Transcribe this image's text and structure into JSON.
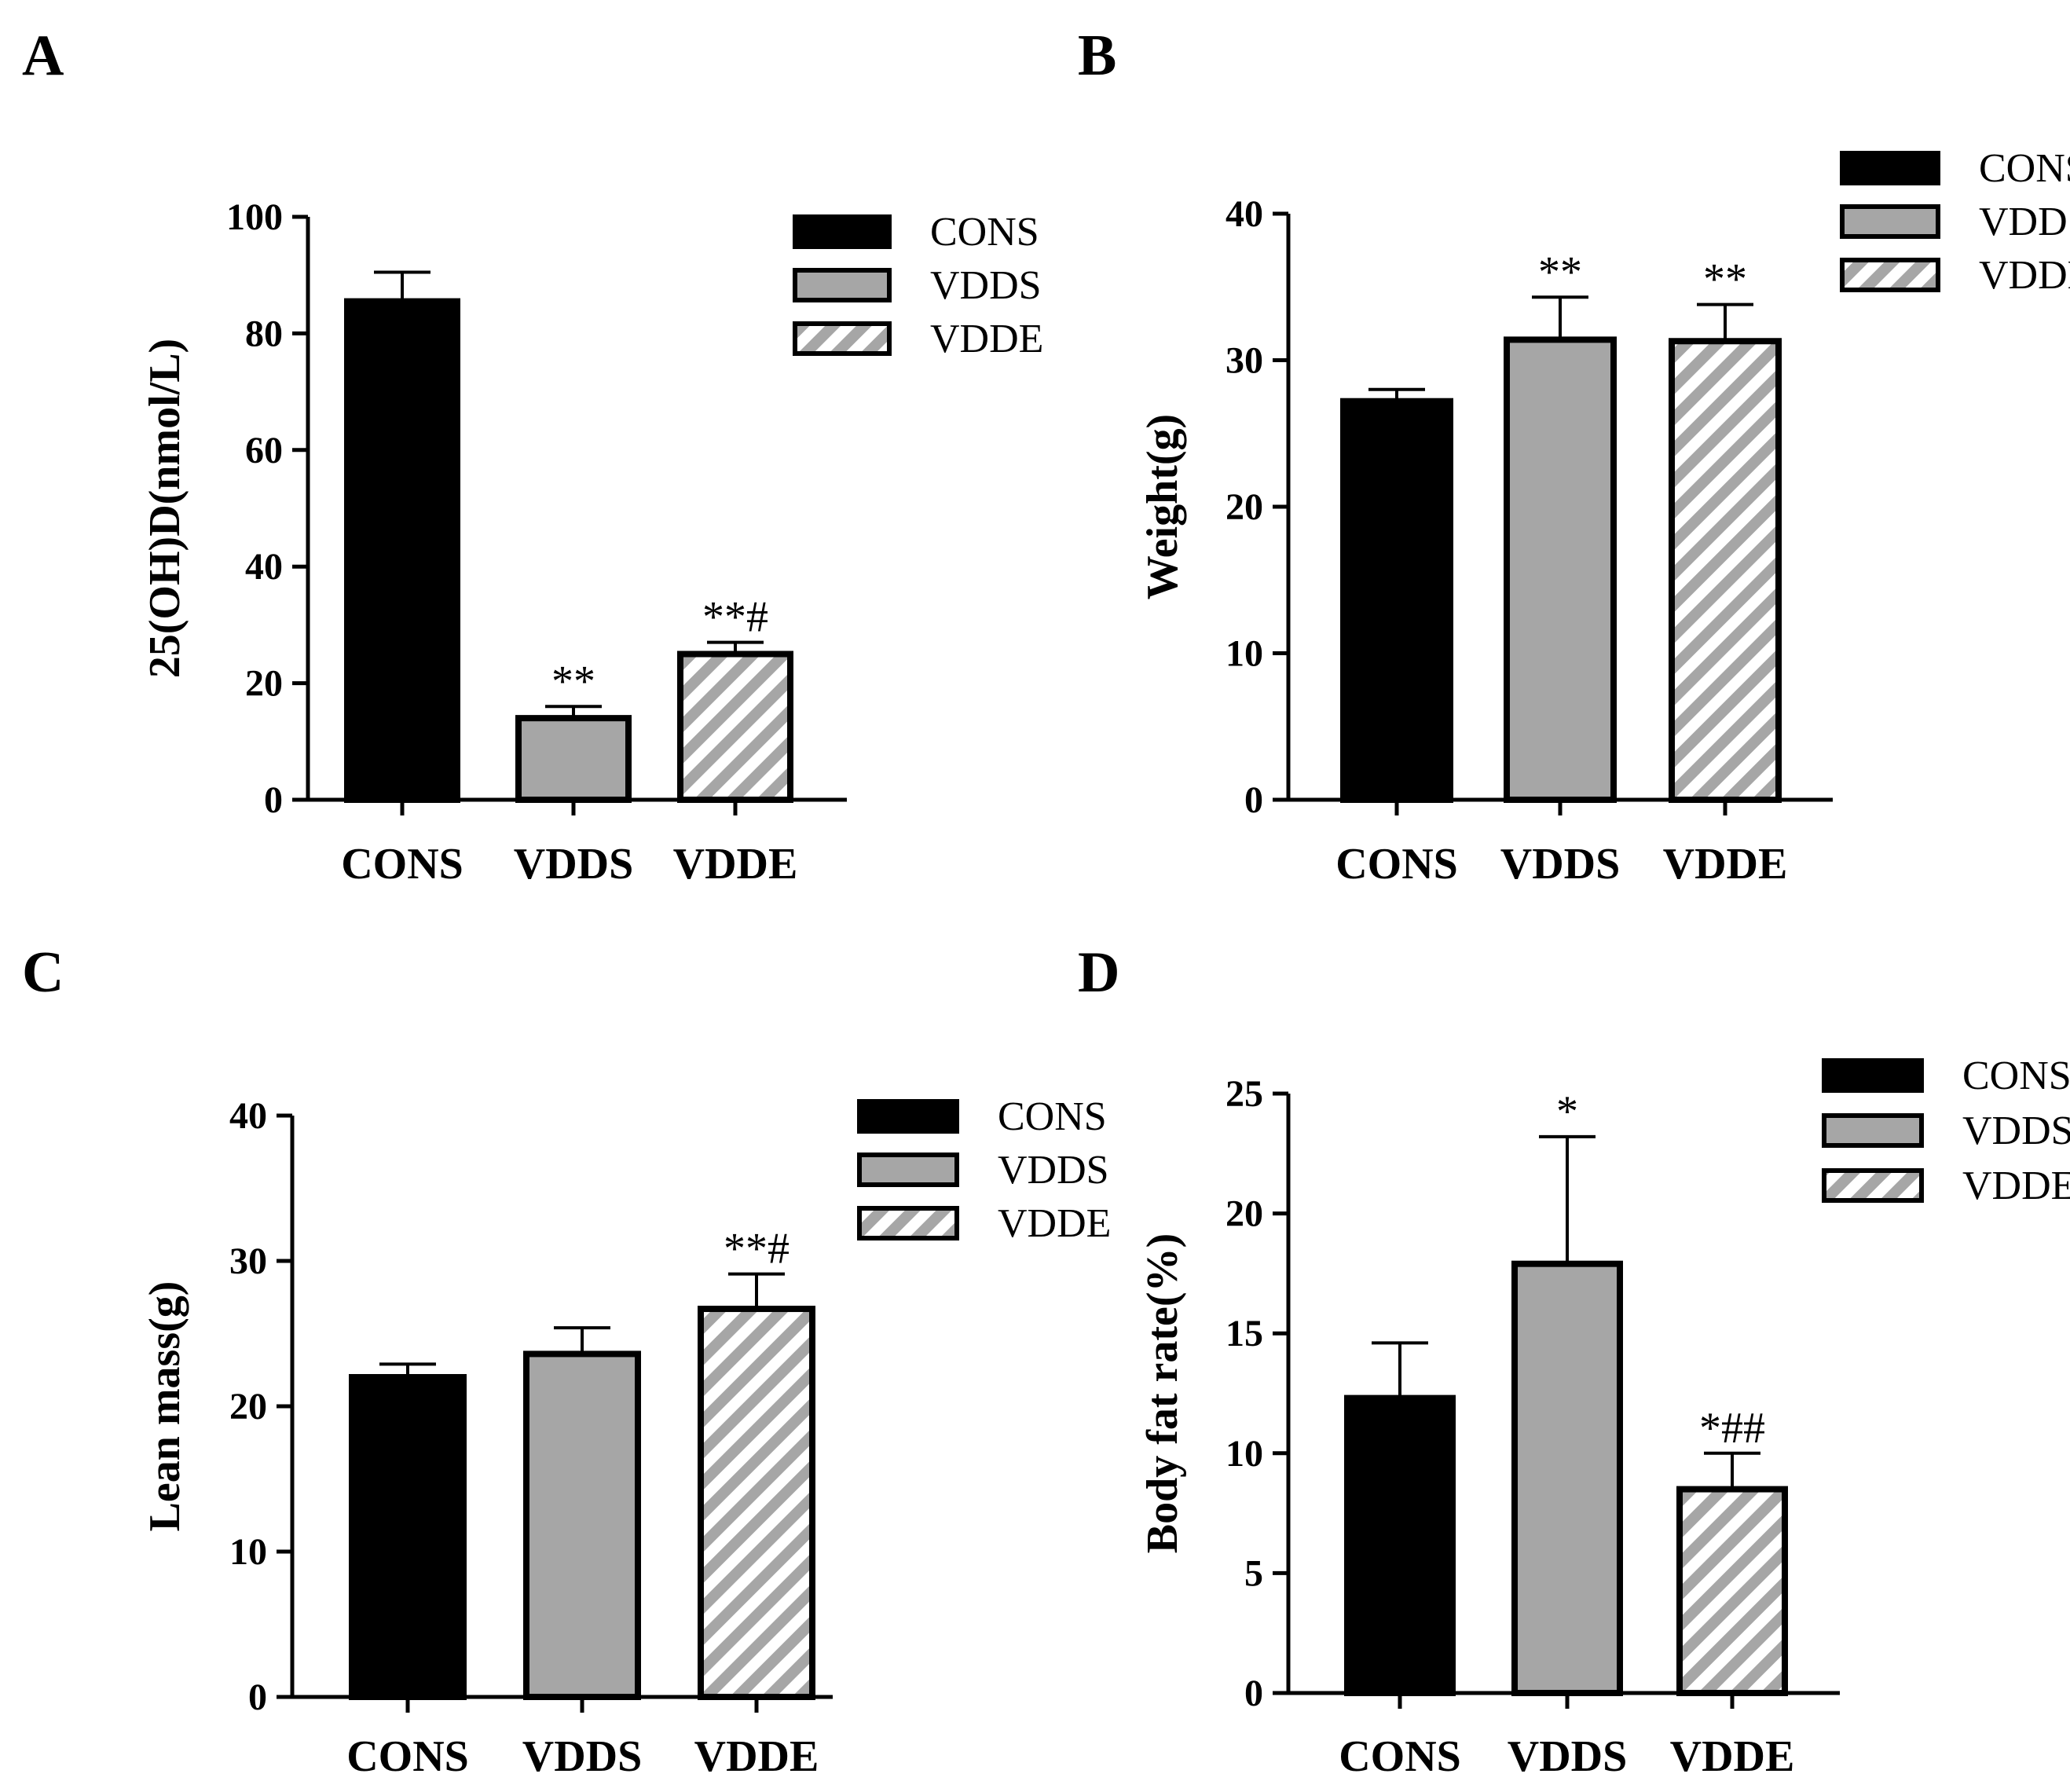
{
  "figure": {
    "colors": {
      "cons": "#000000",
      "vdds": "#a6a6a6",
      "stripe": "#a6a6a6",
      "edge": "#000000",
      "background": "#ffffff"
    },
    "icons": {
      "legend_swatch": "rectangle-swatch-icon"
    }
  },
  "chart_data": [
    {
      "panel": "A",
      "type": "bar",
      "ylabel": "25(OH)D(nmol/L)",
      "ylim": [
        0,
        100
      ],
      "yticks": [
        "0",
        "20",
        "40",
        "60",
        "80",
        "100"
      ],
      "categories": [
        "CONS",
        "VDDS",
        "VDDE"
      ],
      "values": [
        85.5,
        14,
        25
      ],
      "errors": [
        5,
        2,
        2
      ],
      "annotations": [
        "",
        "**",
        "**#"
      ],
      "legend": [
        "CONS",
        "VDDS",
        "VDDE"
      ],
      "legend_position": "top-right"
    },
    {
      "panel": "B",
      "type": "bar",
      "ylabel": "Weight(g)",
      "ylim": [
        0,
        40
      ],
      "yticks": [
        "0",
        "10",
        "20",
        "30",
        "40"
      ],
      "categories": [
        "CONS",
        "VDDS",
        "VDDE"
      ],
      "values": [
        27.2,
        31.4,
        31.3
      ],
      "errors": [
        0.8,
        2.9,
        2.5
      ],
      "annotations": [
        "",
        "**",
        "**"
      ],
      "legend": [
        "CONS",
        "VDDS",
        "VDDE"
      ],
      "legend_position": "top-right"
    },
    {
      "panel": "C",
      "type": "bar",
      "ylabel": "Lean mass(g)",
      "ylim": [
        0,
        40
      ],
      "yticks": [
        "0",
        "10",
        "20",
        "30",
        "40"
      ],
      "categories": [
        "CONS",
        "VDDS",
        "VDDE"
      ],
      "values": [
        22,
        23.6,
        26.7
      ],
      "errors": [
        0.9,
        1.8,
        2.4
      ],
      "annotations": [
        "",
        "",
        "**#"
      ],
      "legend": [
        "CONS",
        "VDDS",
        "VDDE"
      ],
      "legend_position": "top-right"
    },
    {
      "panel": "D",
      "type": "bar",
      "ylabel": "Body fat rate(%)",
      "ylim": [
        0,
        25
      ],
      "yticks": [
        "0",
        "5",
        "10",
        "15",
        "20",
        "25"
      ],
      "categories": [
        "CONS",
        "VDDS",
        "VDDE"
      ],
      "values": [
        12.3,
        17.9,
        8.5
      ],
      "errors": [
        2.3,
        5.3,
        1.5
      ],
      "annotations": [
        "",
        "*",
        "*##"
      ],
      "legend": [
        "CONS",
        "VDDS",
        "VDDE"
      ],
      "legend_position": "top-right"
    }
  ]
}
